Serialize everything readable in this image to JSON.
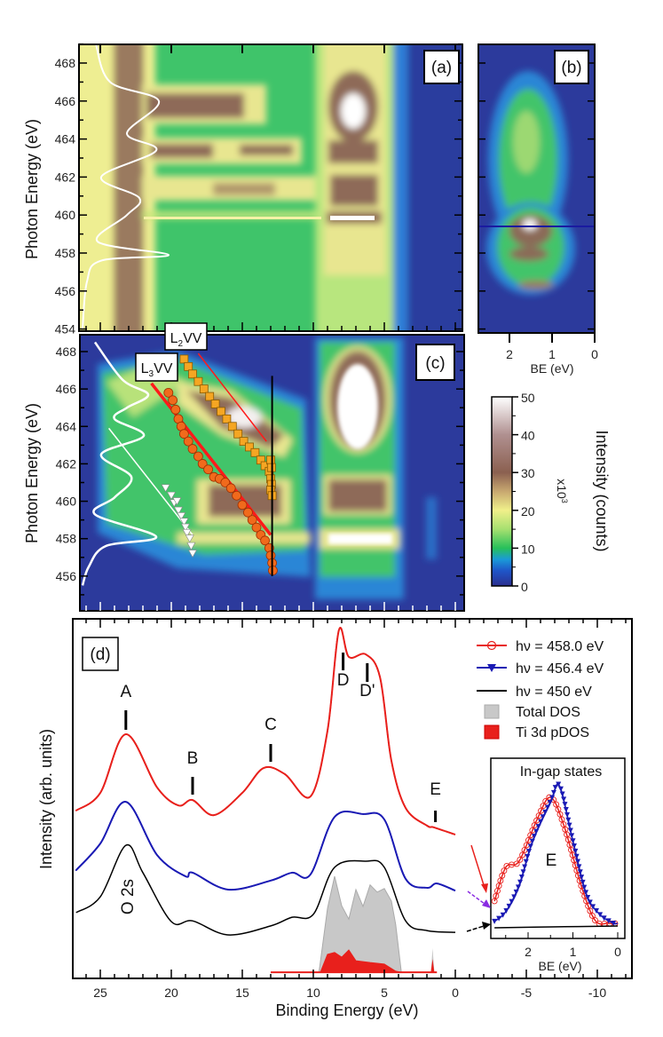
{
  "chart_data": [
    {
      "panel": "(a)",
      "type": "heatmap",
      "ylabel": "Photon Energy (eV)",
      "yticks": [
        454,
        456,
        458,
        460,
        462,
        464,
        466,
        468
      ],
      "ylim": [
        454,
        469
      ],
      "colormap": [
        "#2b2f8f",
        "#1a6fd0",
        "#27c05a",
        "#f0f08a",
        "#8b6050",
        "#ffffff"
      ],
      "profile_line": {
        "color": "#ffffff",
        "hv": [
          469,
          467,
          466,
          464.3,
          463.4,
          462,
          460.9,
          460,
          458.6,
          457.9,
          457.6,
          456.5,
          454
        ],
        "relative_intensity": [
          0.18,
          0.34,
          0.89,
          0.53,
          0.86,
          0.24,
          0.67,
          0.53,
          0.2,
          1.0,
          0.24,
          0.08,
          0.03
        ]
      }
    },
    {
      "panel": "(b)",
      "type": "heatmap",
      "xlabel": "BE (eV)",
      "xticks": [
        2,
        1,
        0
      ],
      "marker_line_color": "#1a1aa0"
    },
    {
      "panel": "(c)",
      "type": "heatmap",
      "ylabel": "Photon Energy (eV)",
      "yticks": [
        454,
        456,
        458,
        460,
        462,
        464,
        466,
        468
      ],
      "ylim": [
        454,
        469
      ],
      "annotations": {
        "l2vv": {
          "main": "L",
          "sub": "2",
          "rest": "VV"
        },
        "l3vv": {
          "main": "L",
          "sub": "3",
          "rest": "VV"
        }
      },
      "profile_line": {
        "color": "#ffffff",
        "hv": [
          468.5,
          466.5,
          465.7,
          465,
          464.4,
          463.5,
          462.5,
          461.3,
          460.2,
          459.3,
          458.1,
          457.6,
          456.5,
          455.5
        ],
        "relative_intensity": [
          0.17,
          0.48,
          0.77,
          0.53,
          0.39,
          0.72,
          0.24,
          0.58,
          0.39,
          0.17,
          0.86,
          0.29,
          0.1,
          0.03
        ]
      },
      "l3_fit_line": {
        "color": "#ff1a1a",
        "be": [
          21.4,
          13.0
        ],
        "hv": [
          466.3,
          458.2
        ]
      },
      "l2_fit_line": {
        "color": "#ff1a1a",
        "be": [
          18.1,
          13.3
        ],
        "hv": [
          467.9,
          463.2
        ]
      },
      "constant_be_line": {
        "color": "#000000",
        "be": [
          12.9,
          12.9
        ],
        "hv": [
          466.7,
          456.0
        ]
      },
      "white_guide_line": {
        "color": "#ffffff",
        "be": [
          24.4,
          18.5
        ],
        "hv": [
          463.9,
          458.2
        ]
      },
      "l3_points": {
        "color": "#f06a1c",
        "marker": "circle",
        "be": [
          20.2,
          19.9,
          19.7,
          19.5,
          19.3,
          19.1,
          18.8,
          18.5,
          18.1,
          17.8,
          17.4,
          17.0,
          16.6,
          16.2,
          15.8,
          15.4,
          15.0,
          14.6,
          14.3,
          14.0,
          13.7,
          13.4,
          13.1,
          13.0,
          12.9,
          12.85
        ],
        "hv": [
          465.8,
          465.4,
          464.9,
          464.4,
          464.0,
          463.6,
          463.2,
          462.8,
          462.4,
          462.0,
          461.7,
          461.3,
          461.2,
          461.0,
          460.7,
          460.3,
          459.8,
          459.4,
          459.0,
          458.6,
          458.2,
          457.9,
          457.5,
          457.1,
          456.7,
          456.3
        ]
      },
      "l2_points": {
        "color": "#f5a623",
        "marker": "square",
        "be": [
          19.1,
          18.8,
          18.5,
          18.1,
          17.7,
          17.3,
          16.9,
          16.5,
          16.1,
          15.7,
          15.3,
          14.9,
          14.5,
          14.1,
          13.7,
          13.4,
          13.1,
          13.0,
          12.95,
          13.0,
          12.9,
          13.0,
          12.95
        ],
        "hv": [
          467.6,
          467.2,
          466.8,
          466.4,
          466.0,
          465.6,
          465.2,
          464.8,
          464.4,
          464.0,
          463.6,
          463.2,
          462.9,
          462.6,
          462.2,
          461.9,
          461.6,
          461.2,
          460.9,
          460.6,
          460.3,
          462.2,
          461.8
        ]
      },
      "triangle_points": {
        "color": "#ffffff",
        "marker": "triangle-down",
        "be": [
          20.4,
          20.0,
          19.8,
          19.6,
          19.5,
          19.3,
          19.1,
          19.0,
          18.9,
          18.7,
          18.6,
          18.5
        ],
        "hv": [
          460.7,
          460.3,
          459.9,
          460.0,
          459.5,
          459.2,
          458.9,
          458.6,
          458.3,
          458.0,
          457.6,
          457.2
        ]
      }
    },
    {
      "panel": "colorbar",
      "label": "Intensity (counts)",
      "multiplier": "x10",
      "multiplier_exp": "3",
      "ticks": [
        0,
        10,
        20,
        30,
        40,
        50
      ],
      "range": [
        0,
        50
      ]
    },
    {
      "panel": "(d)",
      "type": "line",
      "xlabel": "Binding Energy (eV)",
      "ylabel": "Intensity (arb. units)",
      "xticks": [
        25,
        20,
        15,
        10,
        5,
        0,
        -5,
        -10
      ],
      "xlim": [
        26.9,
        -12.4
      ],
      "ylim": [
        0,
        100
      ],
      "series": [
        {
          "name": "hν = 458.0 eV",
          "color": "#e8201c",
          "marker": "circle-open",
          "x": [
            26.7,
            25,
            23.2,
            21,
            19.5,
            18.5,
            17,
            15,
            13.5,
            12,
            10.2,
            9,
            8.2,
            7.5,
            6.3,
            5.3,
            4.5,
            3.5,
            2,
            1.5,
            0
          ],
          "y": [
            46.7,
            51.6,
            67.9,
            53.1,
            48.1,
            49.6,
            45.4,
            51.6,
            58.5,
            56.8,
            50.6,
            68.9,
            96.8,
            89.4,
            90.1,
            83.7,
            60.5,
            47.4,
            42.5,
            42.0,
            40.0
          ]
        },
        {
          "name": "hν = 456.4 eV",
          "color": "#1a1ab4",
          "marker": "triangle-down",
          "x": [
            26.7,
            25,
            23.2,
            21,
            19,
            18.5,
            16,
            13,
            11.5,
            10.2,
            8.5,
            6.5,
            5,
            3.5,
            2,
            1.3,
            0
          ],
          "y": [
            30.1,
            37.5,
            49.1,
            34.3,
            28.4,
            29.4,
            24.7,
            27.2,
            29.4,
            28.9,
            44.9,
            45.7,
            44.2,
            27.7,
            25.2,
            26.4,
            24.4
          ]
        },
        {
          "name": "hν = 450 eV",
          "color": "#000000",
          "marker": "none",
          "x": [
            26.7,
            25,
            23.2,
            22,
            20,
            18.5,
            16,
            13,
            11.5,
            10,
            8.5,
            6.3,
            5,
            3.5,
            2,
            0
          ],
          "y": [
            18.3,
            22.7,
            37.0,
            29.4,
            15.8,
            16.0,
            12.1,
            14.6,
            17.0,
            17.8,
            30.9,
            32.6,
            30.9,
            16.0,
            13.3,
            12.8
          ]
        },
        {
          "name": "Total DOS",
          "color": "#c8c8c8",
          "fill": true,
          "x": [
            9.6,
            9.0,
            8.5,
            8.0,
            7.5,
            7.0,
            6.5,
            6.0,
            5.5,
            5.0,
            4.5,
            4.2,
            3.8
          ],
          "y": [
            1.7,
            19.5,
            28.4,
            20.2,
            16.5,
            24.7,
            20.0,
            26.0,
            24.0,
            25.0,
            21.5,
            15.0,
            1.7
          ],
          "spike": {
            "x": 1.6,
            "y": 8.4
          }
        },
        {
          "name": "Ti 3d pDOS",
          "color": "#e8201c",
          "fill": true,
          "x": [
            13,
            9.5,
            9.0,
            8.5,
            8.0,
            7.5,
            7.0,
            6.0,
            5.0,
            4.2,
            3.8,
            1.3
          ],
          "y": [
            1.7,
            1.7,
            6.7,
            7.2,
            5.9,
            7.9,
            4.9,
            4.4,
            4.0,
            2.0,
            1.7,
            1.7
          ],
          "spike": {
            "x": 1.6,
            "y": 5.4
          }
        }
      ],
      "peak_labels": [
        {
          "text": "A",
          "be": 23.2
        },
        {
          "text": "B",
          "be": 18.5
        },
        {
          "text": "C",
          "be": 13.0
        },
        {
          "text": "D",
          "be": 7.9
        },
        {
          "text": "D'",
          "be": 6.2
        },
        {
          "text": "E",
          "be": 1.4
        }
      ],
      "o2s_label": "O 2s",
      "inset": {
        "title": "In-gap states",
        "peak_label": "E",
        "xlabel": "BE (eV)",
        "xticks": [
          2,
          1,
          0
        ],
        "xlim": [
          2.85,
          -0.05
        ],
        "series": [
          {
            "name": "hν = 458.0 eV",
            "color": "#e8201c",
            "x": [
              2.75,
              2.5,
              2.2,
              1.8,
              1.5,
              1.2,
              0.8,
              0.5,
              0.2,
              0.0
            ],
            "y": [
              20.7,
              39.4,
              42.9,
              66.0,
              78.3,
              62.6,
              28.1,
              9.9,
              8.4,
              8.4
            ]
          },
          {
            "name": "hν = 456.4 eV",
            "color": "#1a1ab4",
            "x": [
              2.75,
              2.5,
              2.2,
              1.9,
              1.5,
              1.3,
              1.0,
              0.7,
              0.4,
              0.1,
              0.0
            ],
            "y": [
              9.4,
              14.8,
              29.6,
              54.2,
              75.9,
              84.7,
              54.2,
              24.6,
              13.3,
              8.4,
              8.4
            ]
          },
          {
            "name": "hν = 450 eV",
            "color": "#000000",
            "x": [
              2.75,
              1.5,
              0.0
            ],
            "y": [
              5.9,
              6.4,
              6.9
            ]
          }
        ]
      }
    }
  ]
}
